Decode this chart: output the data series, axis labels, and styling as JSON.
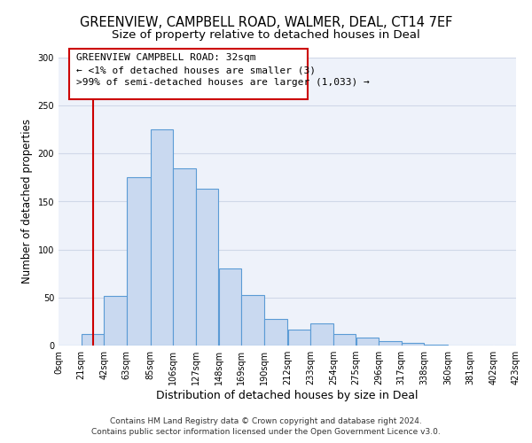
{
  "title": "GREENVIEW, CAMPBELL ROAD, WALMER, DEAL, CT14 7EF",
  "subtitle": "Size of property relative to detached houses in Deal",
  "xlabel": "Distribution of detached houses by size in Deal",
  "ylabel": "Number of detached properties",
  "bar_left_edges": [
    0,
    21,
    42,
    63,
    85,
    106,
    127,
    148,
    169,
    190,
    212,
    233,
    254,
    275,
    296,
    317,
    338,
    360,
    381,
    402
  ],
  "bar_widths": [
    21,
    21,
    21,
    22,
    21,
    21,
    21,
    21,
    21,
    22,
    21,
    21,
    21,
    21,
    21,
    21,
    22,
    21,
    21,
    21
  ],
  "bar_heights": [
    0,
    12,
    52,
    175,
    225,
    185,
    163,
    80,
    53,
    28,
    17,
    23,
    12,
    8,
    5,
    3,
    1,
    0,
    0,
    0
  ],
  "bar_color": "#c9d9f0",
  "bar_edge_color": "#5b9bd5",
  "grid_color": "#d0d8e8",
  "bg_color": "#eef2fa",
  "red_line_x": 32,
  "red_line_color": "#cc0000",
  "annotation_line1": "GREENVIEW CAMPBELL ROAD: 32sqm",
  "annotation_line2": "← <1% of detached houses are smaller (3)",
  "annotation_line3": ">99% of semi-detached houses are larger (1,033) →",
  "ylim": [
    0,
    300
  ],
  "yticks": [
    0,
    50,
    100,
    150,
    200,
    250,
    300
  ],
  "xtick_labels": [
    "0sqm",
    "21sqm",
    "42sqm",
    "63sqm",
    "85sqm",
    "106sqm",
    "127sqm",
    "148sqm",
    "169sqm",
    "190sqm",
    "212sqm",
    "233sqm",
    "254sqm",
    "275sqm",
    "296sqm",
    "317sqm",
    "338sqm",
    "360sqm",
    "381sqm",
    "402sqm",
    "423sqm"
  ],
  "footer_line1": "Contains HM Land Registry data © Crown copyright and database right 2024.",
  "footer_line2": "Contains public sector information licensed under the Open Government Licence v3.0.",
  "title_fontsize": 10.5,
  "subtitle_fontsize": 9.5,
  "xlabel_fontsize": 9,
  "ylabel_fontsize": 8.5,
  "tick_fontsize": 7,
  "footer_fontsize": 6.5,
  "annotation_fontsize": 8
}
